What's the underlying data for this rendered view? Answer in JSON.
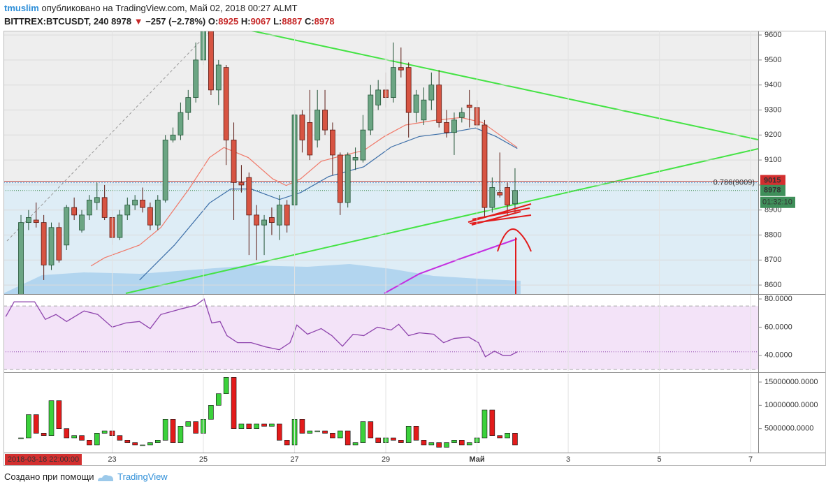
{
  "header": {
    "user": "tmuslim",
    "published": "опубликовано на TradingView.com, Май 02, 2018 00:27 ALMT",
    "symbol": "BITTREX:BTCUSDT, 240",
    "last": "8978",
    "arrow": "▼",
    "change": "−257 (−2.78%)",
    "o_label": "O:",
    "open": "8925",
    "h_label": "H:",
    "high": "9067",
    "l_label": "L:",
    "low": "8887",
    "c_label": "C:",
    "close": "8978"
  },
  "cursor_time": "2018-03-18 22:00:00",
  "footer": {
    "made_with": "Создано при помощи",
    "brand": "TradingView"
  },
  "chart_data": [
    {
      "type": "candlestick",
      "x": [
        0,
        1,
        2,
        3,
        4,
        5,
        6,
        7,
        8,
        9,
        10,
        11,
        12,
        13,
        14,
        15,
        16,
        17,
        18,
        19,
        20,
        21,
        22,
        23,
        24,
        25,
        26,
        27,
        28,
        29,
        30,
        31,
        32,
        33,
        34,
        35,
        36,
        37,
        38,
        39,
        40,
        41,
        42,
        43,
        44,
        45,
        46,
        47,
        48,
        49,
        50,
        51,
        52,
        53,
        54,
        55,
        56,
        57,
        58,
        59,
        60,
        61,
        62,
        63,
        64,
        65
      ],
      "open": [
        8560,
        8850,
        8860,
        8850,
        8680,
        8830,
        8760,
        8910,
        8820,
        8880,
        8930,
        8950,
        8870,
        8790,
        8880,
        8920,
        8940,
        8910,
        8840,
        8940,
        9180,
        9200,
        9290,
        9350,
        9500,
        9620,
        9380,
        9470,
        9180,
        9010,
        9030,
        8880,
        8840,
        8870,
        8840,
        8920,
        8920,
        9280,
        9250,
        9180,
        9300,
        9220,
        9120,
        8930,
        9100,
        9100,
        9220,
        9320,
        9380,
        9350,
        9470,
        9470,
        9290,
        9260,
        9340,
        9400,
        9250,
        9210,
        9270,
        9320,
        9310,
        9240,
        8910,
        8970,
        8990,
        8925
      ],
      "high": [
        8880,
        8900,
        8930,
        8880,
        8850,
        8850,
        8920,
        8950,
        8900,
        8960,
        9010,
        9000,
        8900,
        8900,
        8950,
        8960,
        8990,
        8930,
        8960,
        9200,
        9230,
        9330,
        9380,
        9570,
        9640,
        9640,
        9500,
        9480,
        9250,
        9080,
        9050,
        8920,
        8880,
        8910,
        8960,
        8940,
        9300,
        9300,
        9380,
        9380,
        9380,
        9250,
        9130,
        9130,
        9150,
        9280,
        9400,
        9420,
        9450,
        9570,
        9550,
        9490,
        9380,
        9390,
        9450,
        9460,
        9300,
        9290,
        9310,
        9380,
        9340,
        9260,
        9030,
        9130,
        9010,
        9067
      ],
      "low": [
        8540,
        8820,
        8830,
        8620,
        8660,
        8690,
        8740,
        8860,
        8810,
        8860,
        8900,
        8860,
        8760,
        8780,
        8860,
        8900,
        8890,
        8820,
        8820,
        8930,
        9170,
        9180,
        9260,
        9330,
        9480,
        9360,
        9320,
        9080,
        8860,
        8970,
        8720,
        8700,
        8720,
        8800,
        8780,
        8810,
        8900,
        9130,
        9100,
        9150,
        9200,
        9040,
        8880,
        8910,
        9060,
        9090,
        9200,
        9300,
        9310,
        9330,
        9430,
        9190,
        9250,
        9240,
        9300,
        9230,
        9190,
        9120,
        9250,
        9230,
        9220,
        8870,
        8890,
        8950,
        8880,
        8887
      ],
      "close": [
        8850,
        8870,
        8850,
        8680,
        8830,
        8700,
        8910,
        8880,
        8880,
        8940,
        8950,
        8870,
        8790,
        8880,
        8920,
        8940,
        8910,
        8840,
        8940,
        9180,
        9200,
        9290,
        9350,
        9500,
        9620,
        9380,
        9480,
        9180,
        9010,
        9000,
        8880,
        8840,
        8860,
        8850,
        8920,
        8840,
        9280,
        9180,
        9120,
        9300,
        9220,
        9120,
        8930,
        9120,
        9110,
        9220,
        9360,
        9380,
        9350,
        9470,
        9460,
        9290,
        9360,
        9340,
        9400,
        9250,
        9210,
        9260,
        9290,
        9310,
        9240,
        8910,
        8990,
        8960,
        8920,
        8978
      ],
      "up_color": "#6ba583",
      "down_color": "#d75442",
      "overlays": [
        {
          "color": "#f07a6a",
          "x": [
            9.2,
            11,
            15.6,
            18.4,
            22.1,
            24.8,
            26.7,
            29.9,
            33.1,
            34.9,
            36.8,
            39.5,
            42.3,
            45.1,
            47.8,
            50.6,
            54.3,
            57.9,
            60.7,
            65.3
          ],
          "values": [
            8676,
            8709,
            8760,
            8830,
            8984,
            9110,
            9150,
            9110,
            9025,
            8998,
            9025,
            9095,
            9118,
            9138,
            9194,
            9240,
            9258,
            9270,
            9250,
            9150
          ]
        },
        {
          "color": "#3d6fa8",
          "x": [
            15.6,
            20.2,
            24.8,
            27.6,
            30.3,
            34,
            36.8,
            40.5,
            45.1,
            48.7,
            52.4,
            56.1,
            59.8,
            62.5,
            65.3
          ],
          "values": [
            8620,
            8760,
            8928,
            8984,
            8984,
            8942,
            8970,
            9034,
            9073,
            9152,
            9194,
            9208,
            9228,
            9194,
            9146
          ]
        }
      ],
      "xlim": [
        -2.3,
        97
      ],
      "xticks": [
        {
          "value": 12,
          "label": "23"
        },
        {
          "value": 24,
          "label": "25"
        },
        {
          "value": 36,
          "label": "27"
        },
        {
          "value": 48,
          "label": "29"
        },
        {
          "value": 60,
          "label": "Май"
        },
        {
          "value": 72,
          "label": "3"
        },
        {
          "value": 84,
          "label": "5"
        },
        {
          "value": 96,
          "label": "7"
        }
      ],
      "ylim": [
        8564,
        9617
      ],
      "yticks": [
        8600,
        8700,
        8800,
        8900,
        9000,
        9100,
        9200,
        9300,
        9400,
        9500,
        9600
      ],
      "alert_price": 9015,
      "fib_level": 9009,
      "fib_label": "0.786(9009)",
      "last_price": 8978,
      "countdown": "01:32:10"
    },
    {
      "type": "line",
      "color": "#8e44ad",
      "x": [
        -2,
        -0.9,
        1.8,
        3.2,
        4.6,
        6,
        8.3,
        10.1,
        12,
        13.8,
        15.6,
        17,
        18.4,
        21.1,
        23,
        24.1,
        25.1,
        26.2,
        27.1,
        28.5,
        30.3,
        32.2,
        34,
        35.4,
        36.3,
        37.7,
        39.5,
        40.9,
        42.3,
        43.7,
        45.1,
        46.9,
        48.7,
        49.7,
        51,
        52.4,
        54.3,
        55.6,
        57,
        58.9,
        60.2,
        61.1,
        62.3,
        63.4,
        64.4,
        65.3
      ],
      "values": [
        67.5,
        78,
        78,
        65.5,
        69,
        64,
        71.5,
        69,
        60,
        63,
        64,
        59,
        69,
        73,
        75.5,
        80,
        63,
        64,
        54,
        49,
        49,
        46,
        44,
        49,
        61.5,
        55,
        59,
        54,
        46.5,
        55,
        54,
        60,
        58,
        62,
        54,
        56,
        55,
        49,
        52,
        53,
        49,
        39,
        43,
        40,
        40,
        42.5
      ],
      "ylim": [
        29,
        83
      ],
      "yticks": [
        {
          "value": 40,
          "label": "40.0000"
        },
        {
          "value": 60,
          "label": "60.0000"
        },
        {
          "value": 80,
          "label": "80.0000"
        }
      ],
      "band": [
        30,
        75
      ],
      "hline": 42.5
    },
    {
      "type": "volume",
      "up_color": "#3bd13b",
      "down_color": "#e31b1b",
      "x": [
        0,
        1,
        2,
        3,
        4,
        5,
        6,
        7,
        8,
        9,
        10,
        11,
        12,
        13,
        14,
        15,
        16,
        17,
        18,
        19,
        20,
        21,
        22,
        23,
        24,
        25,
        26,
        27,
        28,
        29,
        30,
        31,
        32,
        33,
        34,
        35,
        36,
        37,
        38,
        39,
        40,
        41,
        42,
        43,
        44,
        45,
        46,
        47,
        48,
        49,
        50,
        51,
        52,
        53,
        54,
        55,
        56,
        57,
        58,
        59,
        60,
        61,
        62,
        63,
        64,
        65
      ],
      "values": [
        3000000,
        8000000,
        4000000,
        3500000,
        11000000,
        5000000,
        3000000,
        3500000,
        2500000,
        1500000,
        4000000,
        4500000,
        3500000,
        2500000,
        2000000,
        1500000,
        1500000,
        2000000,
        2500000,
        7000000,
        2000000,
        5500000,
        6500000,
        4000000,
        7000000,
        10000000,
        12500000,
        16000000,
        5000000,
        6000000,
        5000000,
        6000000,
        5500000,
        6000000,
        2500000,
        1500000,
        7000000,
        4000000,
        4500000,
        4500000,
        4000000,
        3000000,
        4500000,
        1500000,
        2000000,
        6500000,
        3000000,
        2000000,
        3000000,
        2500000,
        2000000,
        5500000,
        2500000,
        1500000,
        2000000,
        1000000,
        2000000,
        2500000,
        1500000,
        2000000,
        3000000,
        9000000,
        3500000,
        3000000,
        4000000,
        1500000
      ],
      "ylim": [
        0,
        16800000
      ],
      "yticks": [
        {
          "value": 5000000,
          "label": "5000000.0000"
        },
        {
          "value": 10000000,
          "label": "10000000.0000"
        },
        {
          "value": 15000000,
          "label": "15000000.0000"
        }
      ]
    }
  ]
}
